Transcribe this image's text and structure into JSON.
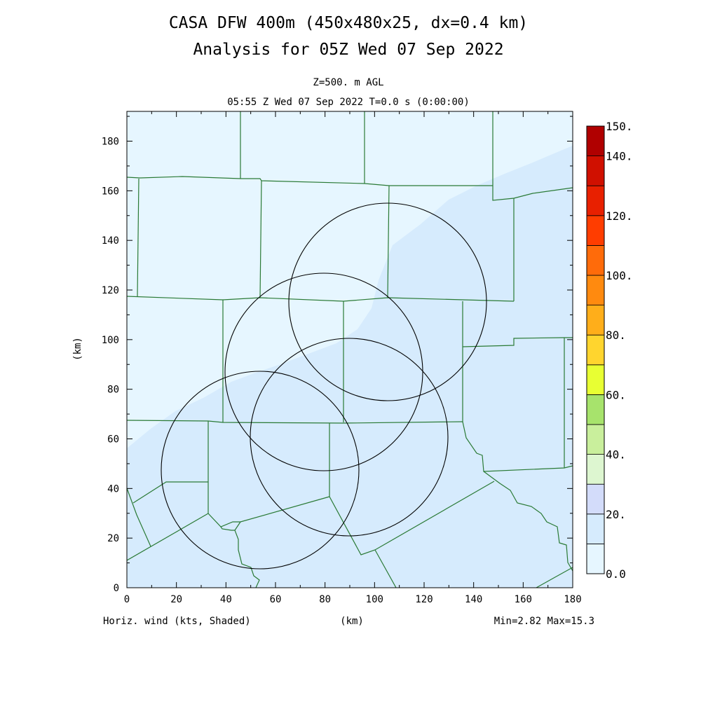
{
  "title_line1": "CASA DFW 400m (450x480x25, dx=0.4 km)",
  "title_line2": "Analysis for 05Z Wed 07 Sep 2022",
  "level_label": "Z=500. m AGL",
  "time_label": "05:55 Z Wed 07 Sep 2022   T=0.0 s (0:00:00)",
  "x_axis": {
    "label": "(km)",
    "ticks": [
      "0",
      "20",
      "40",
      "60",
      "80",
      "100",
      "120",
      "140",
      "160",
      "180"
    ]
  },
  "y_axis": {
    "label": "(km)",
    "ticks": [
      "0",
      "20",
      "40",
      "60",
      "80",
      "100",
      "120",
      "140",
      "160",
      "180"
    ]
  },
  "field_label": "Horiz. wind (kts, Shaded)",
  "minmax_label": "Min=2.82 Max=15.3",
  "colorbar": {
    "labels": [
      "150.",
      "140.",
      "120.",
      "100.",
      "80.",
      "60.",
      "40.",
      "20.",
      "0.0"
    ],
    "colors": [
      "#e6f6ff",
      "#d6ebfd",
      "#d3dcfa",
      "#ddf6d0",
      "#c9ef9c",
      "#a7e36c",
      "#e8ff33",
      "#ffd52e",
      "#ffae1a",
      "#ff8a0f",
      "#ff6b0a",
      "#ff3d00",
      "#e82000",
      "#d01000",
      "#b00000"
    ]
  },
  "map": {
    "background_color": "#e6f6ff",
    "shaded_region_color": "#d6ebfd",
    "boundary_color": "#2a7a35",
    "radar_ring_color": "#000000"
  }
}
